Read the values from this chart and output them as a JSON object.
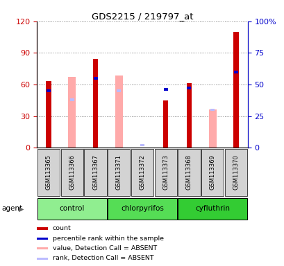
{
  "title": "GDS2215 / 219797_at",
  "samples": [
    "GSM113365",
    "GSM113366",
    "GSM113367",
    "GSM113371",
    "GSM113372",
    "GSM113373",
    "GSM113368",
    "GSM113369",
    "GSM113370"
  ],
  "groups": [
    {
      "label": "control",
      "color": "#90ee90",
      "indices": [
        0,
        1,
        2
      ]
    },
    {
      "label": "chlorpyrifos",
      "color": "#55dd55",
      "indices": [
        3,
        4,
        5
      ]
    },
    {
      "label": "cyfluthrin",
      "color": "#33cc33",
      "indices": [
        6,
        7,
        8
      ]
    }
  ],
  "count": [
    63,
    null,
    84,
    null,
    null,
    45,
    61,
    null,
    110
  ],
  "percentile": [
    45,
    null,
    55,
    null,
    null,
    46,
    47,
    null,
    60
  ],
  "absent_value": [
    null,
    56,
    null,
    57,
    null,
    null,
    null,
    30,
    null
  ],
  "absent_rank": [
    null,
    38,
    null,
    45,
    2,
    null,
    null,
    30,
    null
  ],
  "ylim_left": [
    0,
    120
  ],
  "ylim_right": [
    0,
    100
  ],
  "left_ticks": [
    0,
    30,
    60,
    90,
    120
  ],
  "right_ticks": [
    0,
    25,
    50,
    75,
    100
  ],
  "right_labels": [
    "0",
    "25",
    "50",
    "75",
    "100%"
  ],
  "color_count": "#cc0000",
  "color_percentile": "#0000cc",
  "color_absent_value": "#ffaaaa",
  "color_absent_rank": "#bbbbff",
  "legend_labels": [
    "count",
    "percentile rank within the sample",
    "value, Detection Call = ABSENT",
    "rank, Detection Call = ABSENT"
  ],
  "agent_label": "agent"
}
